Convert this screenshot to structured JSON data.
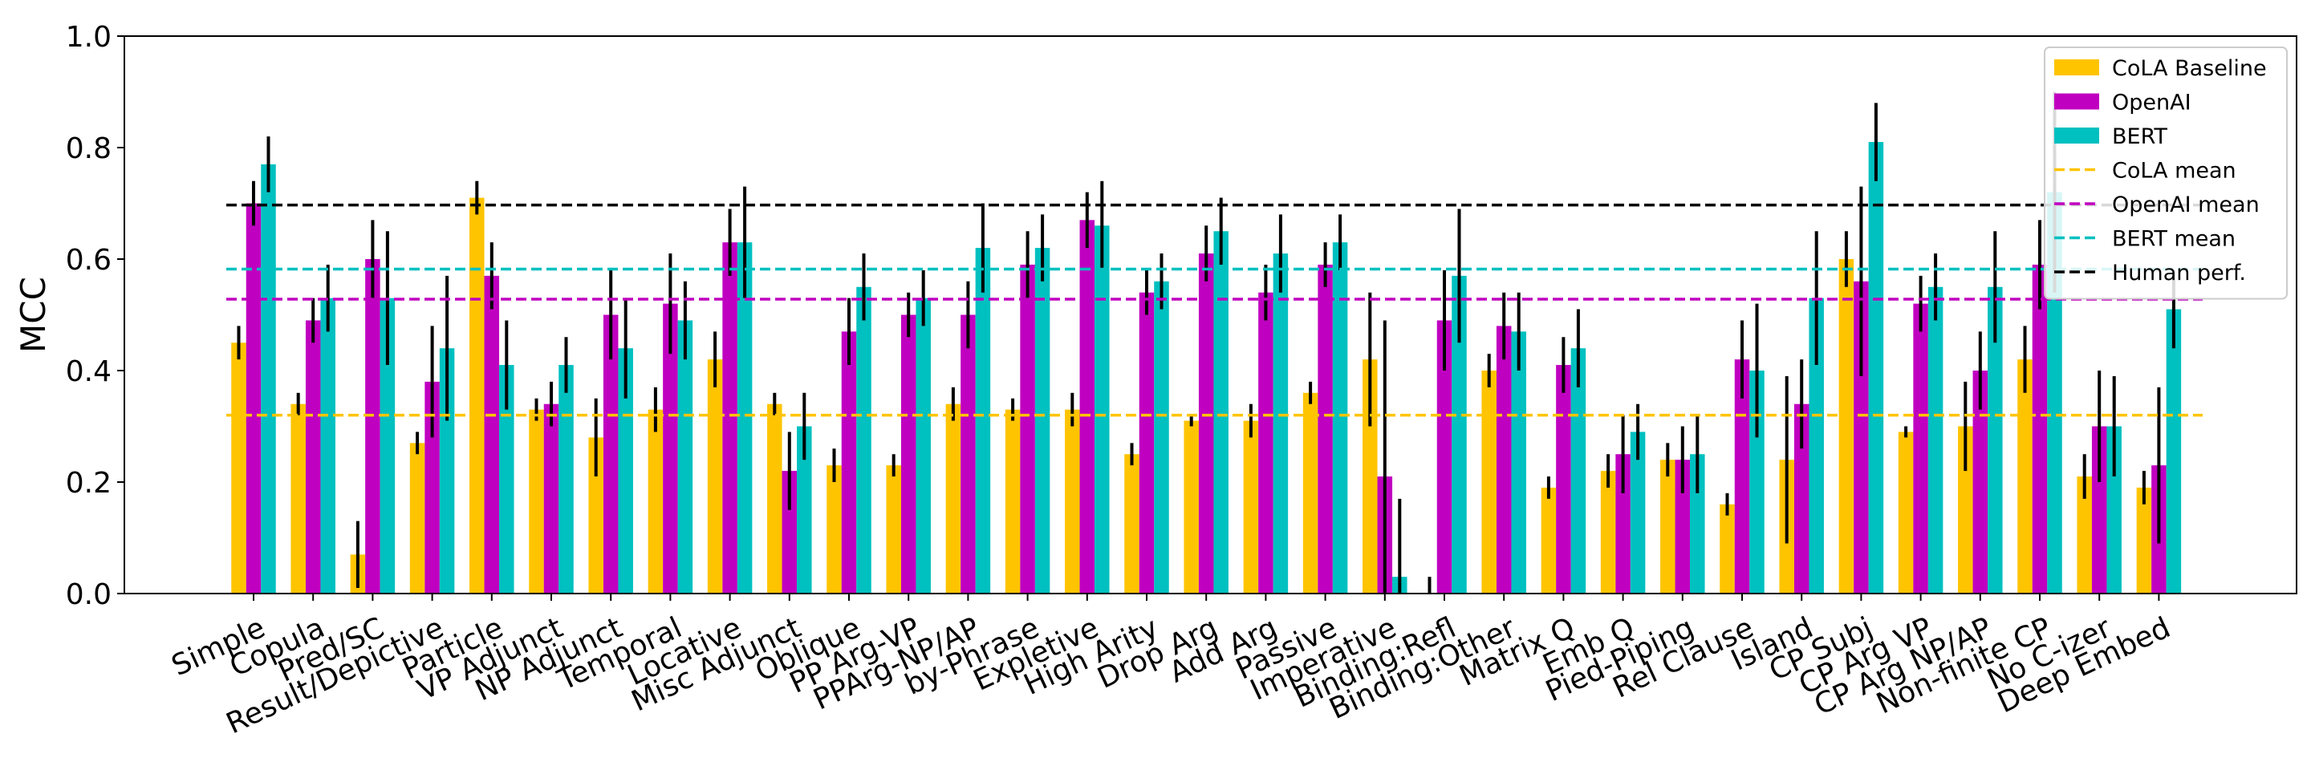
{
  "chart_data": {
    "type": "bar",
    "title": "",
    "xlabel": "",
    "ylabel": "MCC",
    "ylim": [
      0.0,
      1.0
    ],
    "yticks": [
      "0.0",
      "0.2",
      "0.4",
      "0.6",
      "0.8",
      "1.0"
    ],
    "legend_position": "top-right",
    "grid": false,
    "categories": [
      "Simple",
      "Copula",
      "Pred/SC",
      "Result/Depictive",
      "Particle",
      "VP Adjunct",
      "NP Adjunct",
      "Temporal",
      "Locative",
      "Misc Adjunct",
      "Oblique",
      "PP Arg-VP",
      "PPArg-NP/AP",
      "by-Phrase",
      "Expletive",
      "High Arity",
      "Drop Arg",
      "Add Arg",
      "Passive",
      "Imperative",
      "Binding:Refl",
      "Binding:Other",
      "Matrix Q",
      "Emb Q",
      "Pied-Piping",
      "Rel Clause",
      "Island",
      "CP Subj",
      "CP Arg VP",
      "CP Arg NP/AP",
      "Non-finite CP",
      "No C-izer",
      "Deep Embed"
    ],
    "series": [
      {
        "name": "CoLA Baseline",
        "color": "#ffc400",
        "values": [
          0.45,
          0.34,
          0.07,
          0.27,
          0.71,
          0.33,
          0.28,
          0.33,
          0.42,
          0.34,
          0.23,
          0.23,
          0.34,
          0.33,
          0.33,
          0.25,
          0.31,
          0.31,
          0.36,
          0.42,
          0.0,
          0.4,
          0.19,
          0.22,
          0.24,
          0.16,
          0.24,
          0.6,
          0.29,
          0.3,
          0.42,
          0.21,
          0.19
        ],
        "errors": [
          0.03,
          0.02,
          0.06,
          0.02,
          0.03,
          0.02,
          0.07,
          0.04,
          0.05,
          0.02,
          0.03,
          0.02,
          0.03,
          0.02,
          0.03,
          0.02,
          0.01,
          0.03,
          0.02,
          0.12,
          0.03,
          0.03,
          0.02,
          0.03,
          0.03,
          0.02,
          0.15,
          0.05,
          0.01,
          0.08,
          0.06,
          0.04,
          0.03
        ]
      },
      {
        "name": "OpenAI",
        "color": "#c000c0",
        "values": [
          0.7,
          0.49,
          0.6,
          0.38,
          0.57,
          0.34,
          0.5,
          0.52,
          0.63,
          0.22,
          0.47,
          0.5,
          0.5,
          0.59,
          0.67,
          0.54,
          0.61,
          0.54,
          0.59,
          0.21,
          0.49,
          0.48,
          0.41,
          0.25,
          0.24,
          0.42,
          0.34,
          0.56,
          0.52,
          0.4,
          0.59,
          0.3,
          0.23
        ],
        "errors": [
          0.04,
          0.04,
          0.07,
          0.1,
          0.06,
          0.04,
          0.08,
          0.09,
          0.06,
          0.07,
          0.06,
          0.04,
          0.06,
          0.06,
          0.05,
          0.04,
          0.05,
          0.05,
          0.04,
          0.28,
          0.09,
          0.06,
          0.05,
          0.07,
          0.06,
          0.07,
          0.08,
          0.17,
          0.05,
          0.07,
          0.08,
          0.1,
          0.14
        ]
      },
      {
        "name": "BERT",
        "color": "#00c0c0",
        "values": [
          0.77,
          0.53,
          0.53,
          0.44,
          0.41,
          0.41,
          0.44,
          0.49,
          0.63,
          0.3,
          0.55,
          0.53,
          0.62,
          0.62,
          0.66,
          0.56,
          0.65,
          0.61,
          0.63,
          0.03,
          0.57,
          0.47,
          0.44,
          0.29,
          0.25,
          0.4,
          0.53,
          0.81,
          0.55,
          0.55,
          0.72,
          0.3,
          0.51
        ]
      }
    ],
    "bert_errors": [
      0.05,
      0.06,
      0.12,
      0.13,
      0.08,
      0.05,
      0.09,
      0.07,
      0.1,
      0.06,
      0.06,
      0.05,
      0.08,
      0.06,
      0.08,
      0.05,
      0.06,
      0.07,
      0.05,
      0.14,
      0.12,
      0.07,
      0.07,
      0.05,
      0.07,
      0.12,
      0.12,
      0.07,
      0.06,
      0.1,
      0.18,
      0.09,
      0.07
    ],
    "reference_lines": [
      {
        "name": "CoLA mean",
        "value": 0.32,
        "color": "#ffc400"
      },
      {
        "name": "OpenAI mean",
        "value": 0.528,
        "color": "#c000c0"
      },
      {
        "name": "BERT mean",
        "value": 0.582,
        "color": "#00c0c0"
      },
      {
        "name": "Human perf.",
        "value": 0.697,
        "color": "#000000"
      }
    ]
  }
}
